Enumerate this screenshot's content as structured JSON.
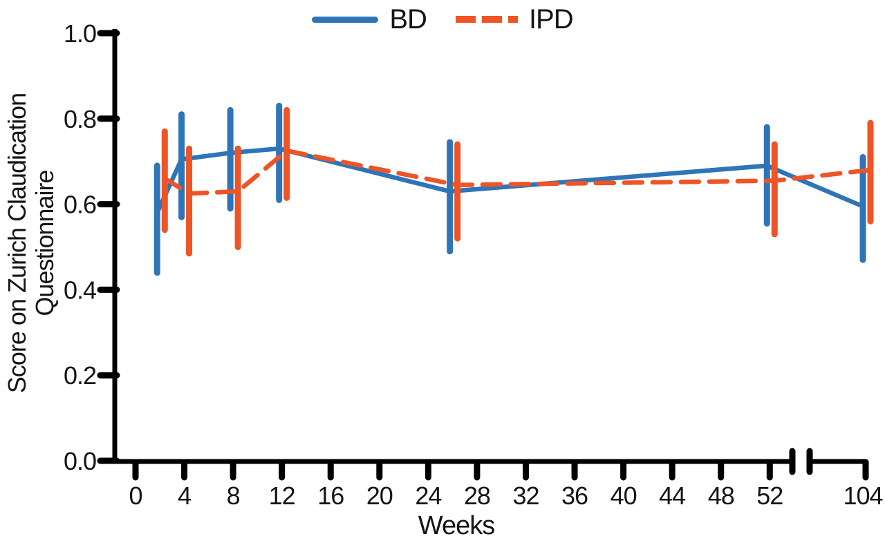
{
  "figure": {
    "background": "#ffffff",
    "text_color": "#151515",
    "axis_color": "#000000"
  },
  "chart_data": {
    "type": "line",
    "title": "",
    "xlabel": "Weeks",
    "ylabel": "Score on Zurich Claudication Questionnaire",
    "ylabel_lines": [
      "Score on Zurich Claudication",
      "Questionnaire"
    ],
    "x_tick_labels": [
      "0",
      "4",
      "8",
      "12",
      "16",
      "20",
      "24",
      "28",
      "32",
      "36",
      "40",
      "44",
      "48",
      "52",
      "104"
    ],
    "x_axis_break_between": [
      52,
      104
    ],
    "y_tick_labels": [
      "0.0",
      "0.2",
      "0.4",
      "0.6",
      "0.8",
      "1.0"
    ],
    "ylim": [
      0.0,
      1.0
    ],
    "grid": false,
    "legend_position": "top-center",
    "error_bar_style": "vertical",
    "weeks": [
      2,
      4,
      8,
      12,
      26,
      52,
      104
    ],
    "series": [
      {
        "name": "BD",
        "line_style": "solid",
        "color": "#2E74B8",
        "values": [
          0.58,
          0.705,
          0.72,
          0.73,
          0.63,
          0.69,
          0.595
        ],
        "err_low": [
          0.44,
          0.57,
          0.59,
          0.61,
          0.49,
          0.555,
          0.47
        ],
        "err_high": [
          0.69,
          0.81,
          0.82,
          0.83,
          0.745,
          0.78,
          0.71
        ]
      },
      {
        "name": "IPD",
        "line_style": "dashed",
        "color": "#EE5426",
        "values": [
          0.66,
          0.625,
          0.63,
          0.725,
          0.645,
          0.655,
          0.68
        ],
        "err_low": [
          0.54,
          0.485,
          0.5,
          0.615,
          0.52,
          0.53,
          0.56
        ],
        "err_high": [
          0.77,
          0.73,
          0.73,
          0.82,
          0.74,
          0.74,
          0.79
        ]
      }
    ]
  }
}
